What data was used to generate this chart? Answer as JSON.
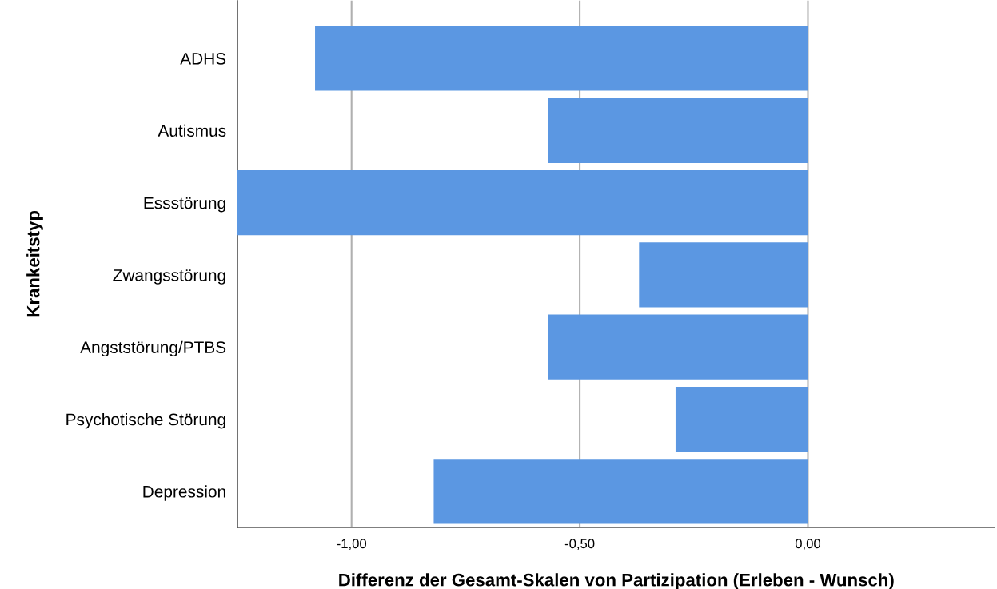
{
  "chart_data": {
    "type": "bar",
    "orientation": "horizontal",
    "xlabel": "Differenz der Gesamt-Skalen von Partizipation (Erleben - Wunsch)",
    "ylabel": "Krankeitstyp",
    "categories": [
      "ADHS",
      "Autismus",
      "Essstörung",
      "Zwangsstörung",
      "Angststörung/PTBS",
      "Psychotische Störung",
      "Depression"
    ],
    "values": [
      -1.08,
      -0.57,
      -1.25,
      -0.37,
      -0.57,
      -0.29,
      -0.82
    ],
    "color": "#5b97e2",
    "xlim": [
      -1.25,
      0.41
    ],
    "xticks": [
      {
        "value": -1.0,
        "label": "-1,00"
      },
      {
        "value": -0.5,
        "label": "-0,50"
      },
      {
        "value": 0.0,
        "label": "0,00"
      }
    ],
    "grid": "x"
  }
}
